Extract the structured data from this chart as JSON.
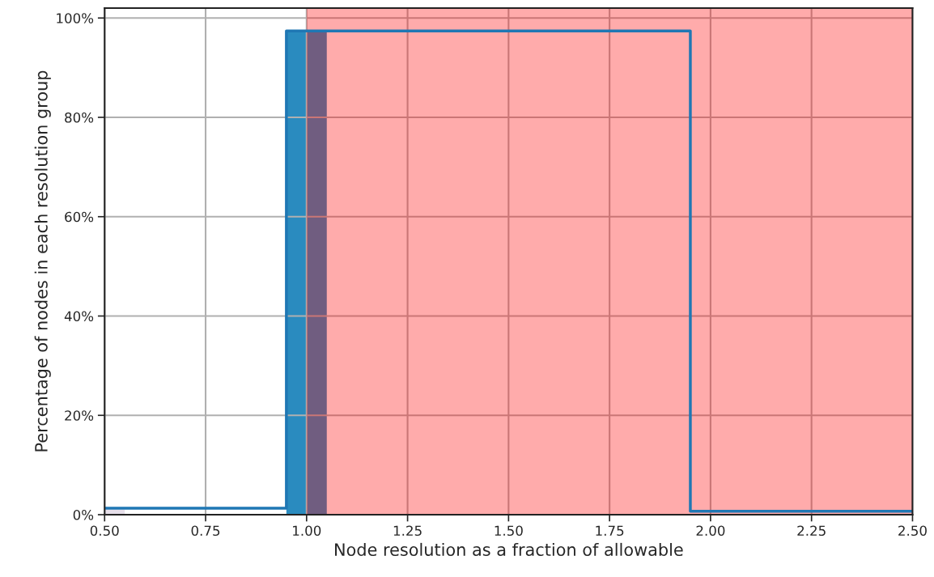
{
  "chart_data": {
    "type": "histogram",
    "xlabel": "Node resolution as a fraction of allowable",
    "ylabel": "Percentage of nodes in each resolution group",
    "series": [
      {
        "bins": [
          0.5,
          0.55
        ],
        "values": [
          1.0
        ],
        "color": "#e6dfea"
      },
      {
        "bins": [
          0.95,
          1.05
        ],
        "values": [
          97.4
        ],
        "color": "#2a8bbf"
      },
      {
        "type": "step",
        "x": [
          0.5,
          0.95,
          1.95,
          2.5
        ],
        "values": [
          1.3,
          97.4,
          0.7,
          0.7
        ],
        "color": "#1f77b4"
      }
    ],
    "bands": [
      {
        "axis": "x",
        "from": 1.0,
        "to": 2.5,
        "color": "#ff0000"
      }
    ],
    "xlim": [
      0.5,
      2.5
    ],
    "xticks": [
      {
        "value": 0.5,
        "label": "0.50"
      },
      {
        "value": 0.75,
        "label": "0.75"
      },
      {
        "value": 1.0,
        "label": "1.00"
      },
      {
        "value": 1.25,
        "label": "1.25"
      },
      {
        "value": 1.5,
        "label": "1.50"
      },
      {
        "value": 1.75,
        "label": "1.75"
      },
      {
        "value": 2.0,
        "label": "2.00"
      },
      {
        "value": 2.25,
        "label": "2.25"
      },
      {
        "value": 2.5,
        "label": "2.50"
      }
    ],
    "ylim": [
      0,
      102
    ],
    "yticks": [
      {
        "value": 0,
        "label": "0%"
      },
      {
        "value": 20,
        "label": "20%"
      },
      {
        "value": 40,
        "label": "40%"
      },
      {
        "value": 60,
        "label": "60%"
      },
      {
        "value": 80,
        "label": "80%"
      },
      {
        "value": 100,
        "label": "100%"
      }
    ],
    "grid": true
  }
}
